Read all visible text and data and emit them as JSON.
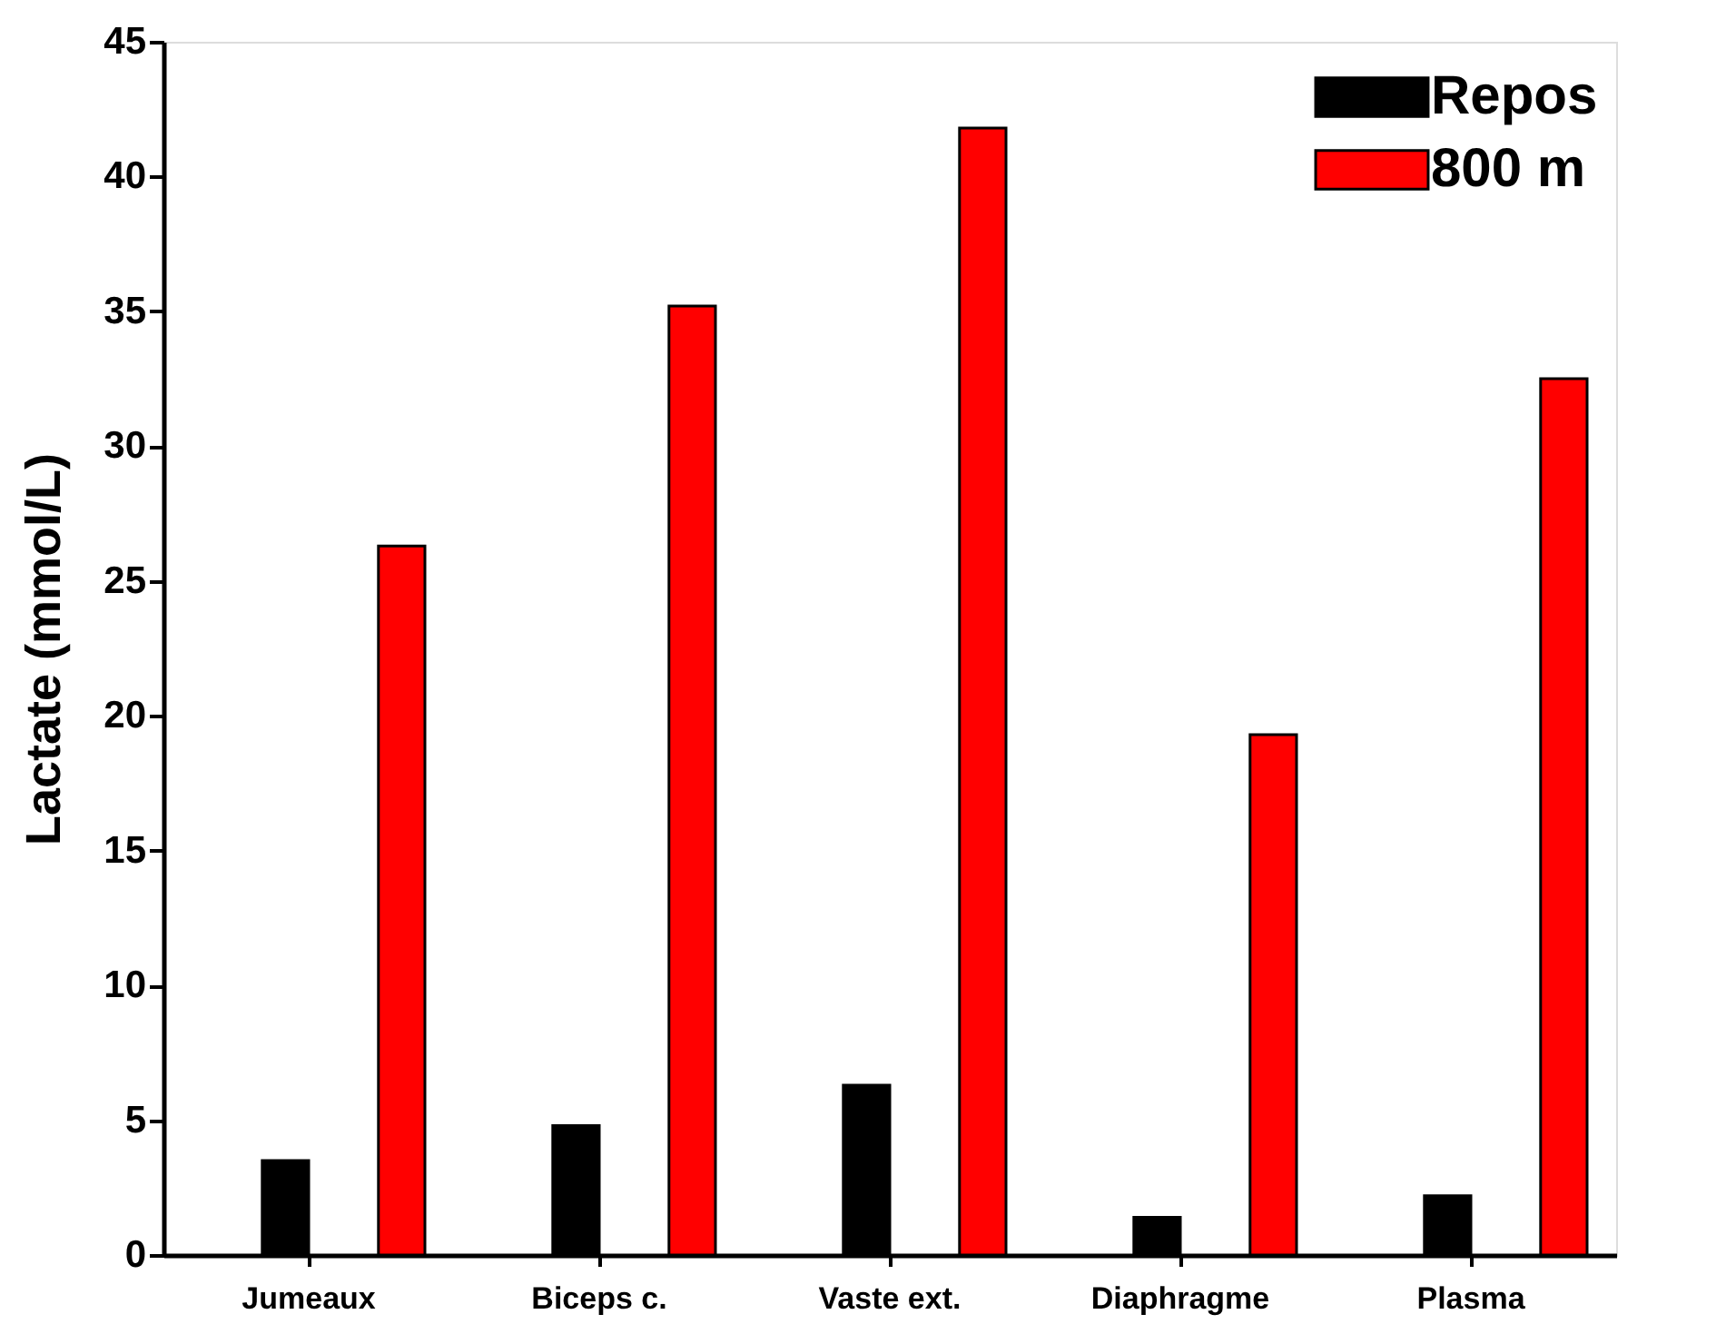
{
  "chart_data": {
    "type": "bar",
    "ylabel": "Lactate (mmol/L)",
    "categories": [
      "Jumeaux",
      "Biceps c.",
      "Vaste ext.",
      "Diaphragme",
      "Plasma"
    ],
    "series": [
      {
        "name": "Repos",
        "color": "#000000",
        "values": [
          3.5,
          4.8,
          6.3,
          1.4,
          2.2
        ]
      },
      {
        "name": "800 m",
        "color": "#ff0000",
        "values": [
          26.3,
          35.2,
          41.8,
          19.3,
          32.5
        ]
      }
    ],
    "ylim": [
      0,
      45
    ],
    "yticks": [
      0,
      5,
      10,
      15,
      20,
      25,
      30,
      35,
      40,
      45
    ],
    "grid": false,
    "legend": "top right"
  }
}
